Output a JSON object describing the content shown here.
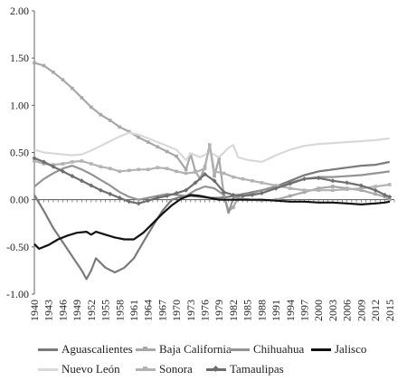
{
  "chart_data": {
    "type": "line",
    "title": "",
    "xlabel": "",
    "ylabel": "",
    "ylim": [
      -1.0,
      2.0
    ],
    "yticks": [
      "-1.00",
      "-0.50",
      "0.00",
      "0.50",
      "1.00",
      "1.50",
      "2.00"
    ],
    "x_start": 1940,
    "x_end": 2016,
    "xtick_labels": [
      "1940",
      "1943",
      "1946",
      "1949",
      "1952",
      "1955",
      "1958",
      "1961",
      "1964",
      "1967",
      "1970",
      "1973",
      "1976",
      "1979",
      "1982",
      "1985",
      "1988",
      "1991",
      "1994",
      "1997",
      "2000",
      "2003",
      "2006",
      "2009",
      "2012",
      "2015"
    ],
    "grid": false,
    "legend_position": "bottom",
    "series": [
      {
        "name": "Aguascalientes",
        "color": "#7a7a7a",
        "marker": "none",
        "points": [
          [
            1940,
            0.05
          ],
          [
            1942,
            -0.12
          ],
          [
            1944,
            -0.3
          ],
          [
            1946,
            -0.45
          ],
          [
            1948,
            -0.6
          ],
          [
            1950,
            -0.75
          ],
          [
            1951,
            -0.84
          ],
          [
            1952,
            -0.75
          ],
          [
            1953,
            -0.62
          ],
          [
            1955,
            -0.72
          ],
          [
            1957,
            -0.77
          ],
          [
            1959,
            -0.72
          ],
          [
            1961,
            -0.62
          ],
          [
            1963,
            -0.45
          ],
          [
            1965,
            -0.28
          ],
          [
            1967,
            -0.12
          ],
          [
            1969,
            0.0
          ],
          [
            1971,
            0.03
          ],
          [
            1973,
            0.04
          ],
          [
            1975,
            0.03
          ],
          [
            1977,
            0.02
          ],
          [
            1979,
            0.02
          ],
          [
            1981,
            0.03
          ],
          [
            1983,
            0.05
          ],
          [
            1985,
            0.07
          ],
          [
            1988,
            0.1
          ],
          [
            1991,
            0.14
          ],
          [
            1994,
            0.2
          ],
          [
            1997,
            0.26
          ],
          [
            2000,
            0.3
          ],
          [
            2003,
            0.32
          ],
          [
            2006,
            0.34
          ],
          [
            2009,
            0.36
          ],
          [
            2012,
            0.37
          ],
          [
            2014,
            0.39
          ],
          [
            2015,
            0.4
          ]
        ]
      },
      {
        "name": "Baja California",
        "color": "#a8a8a8",
        "marker": "square",
        "points": [
          [
            1940,
            1.45
          ],
          [
            1942,
            1.42
          ],
          [
            1944,
            1.35
          ],
          [
            1946,
            1.27
          ],
          [
            1948,
            1.18
          ],
          [
            1950,
            1.08
          ],
          [
            1952,
            0.98
          ],
          [
            1954,
            0.9
          ],
          [
            1956,
            0.84
          ],
          [
            1958,
            0.77
          ],
          [
            1960,
            0.72
          ],
          [
            1962,
            0.66
          ],
          [
            1964,
            0.61
          ],
          [
            1966,
            0.56
          ],
          [
            1968,
            0.51
          ],
          [
            1970,
            0.46
          ],
          [
            1972,
            0.32
          ],
          [
            1973,
            0.48
          ],
          [
            1974,
            0.3
          ],
          [
            1975,
            0.22
          ],
          [
            1976,
            0.35
          ],
          [
            1977,
            0.58
          ],
          [
            1978,
            0.25
          ],
          [
            1979,
            0.44
          ],
          [
            1980,
            0.05
          ],
          [
            1981,
            -0.12
          ],
          [
            1982,
            -0.08
          ],
          [
            1983,
            0.02
          ],
          [
            1985,
            0.0
          ],
          [
            1988,
            -0.01
          ],
          [
            1991,
            0.0
          ],
          [
            1994,
            0.04
          ],
          [
            1997,
            0.08
          ],
          [
            2000,
            0.12
          ],
          [
            2003,
            0.14
          ],
          [
            2006,
            0.12
          ],
          [
            2009,
            0.1
          ],
          [
            2012,
            0.06
          ],
          [
            2014,
            0.03
          ],
          [
            2015,
            0.0
          ]
        ]
      },
      {
        "name": "Chihuahua",
        "color": "#949494",
        "marker": "none",
        "points": [
          [
            1940,
            0.14
          ],
          [
            1942,
            0.22
          ],
          [
            1944,
            0.28
          ],
          [
            1946,
            0.33
          ],
          [
            1948,
            0.36
          ],
          [
            1950,
            0.32
          ],
          [
            1952,
            0.27
          ],
          [
            1954,
            0.21
          ],
          [
            1956,
            0.15
          ],
          [
            1958,
            0.08
          ],
          [
            1960,
            0.03
          ],
          [
            1962,
            0.0
          ],
          [
            1964,
            0.02
          ],
          [
            1966,
            0.04
          ],
          [
            1968,
            0.06
          ],
          [
            1970,
            0.05
          ],
          [
            1972,
            0.04
          ],
          [
            1974,
            0.1
          ],
          [
            1976,
            0.14
          ],
          [
            1978,
            0.12
          ],
          [
            1980,
            0.05
          ],
          [
            1981,
            -0.14
          ],
          [
            1982,
            0.02
          ],
          [
            1984,
            0.05
          ],
          [
            1986,
            0.07
          ],
          [
            1988,
            0.1
          ],
          [
            1991,
            0.13
          ],
          [
            1994,
            0.18
          ],
          [
            1997,
            0.22
          ],
          [
            2000,
            0.24
          ],
          [
            2003,
            0.24
          ],
          [
            2006,
            0.25
          ],
          [
            2009,
            0.26
          ],
          [
            2012,
            0.28
          ],
          [
            2015,
            0.3
          ]
        ]
      },
      {
        "name": "Jalisco",
        "color": "#111111",
        "marker": "none",
        "points": [
          [
            1940,
            -0.47
          ],
          [
            1941,
            -0.52
          ],
          [
            1943,
            -0.48
          ],
          [
            1945,
            -0.42
          ],
          [
            1947,
            -0.38
          ],
          [
            1949,
            -0.35
          ],
          [
            1951,
            -0.34
          ],
          [
            1952,
            -0.37
          ],
          [
            1953,
            -0.34
          ],
          [
            1955,
            -0.37
          ],
          [
            1957,
            -0.4
          ],
          [
            1959,
            -0.42
          ],
          [
            1961,
            -0.42
          ],
          [
            1963,
            -0.35
          ],
          [
            1965,
            -0.25
          ],
          [
            1967,
            -0.15
          ],
          [
            1969,
            -0.06
          ],
          [
            1971,
            0.01
          ],
          [
            1973,
            0.05
          ],
          [
            1975,
            0.04
          ],
          [
            1977,
            0.02
          ],
          [
            1979,
            0.0
          ],
          [
            1982,
            0.0
          ],
          [
            1985,
            0.0
          ],
          [
            1988,
            0.0
          ],
          [
            1991,
            -0.01
          ],
          [
            1994,
            -0.02
          ],
          [
            1997,
            -0.02
          ],
          [
            2000,
            -0.03
          ],
          [
            2003,
            -0.03
          ],
          [
            2006,
            -0.04
          ],
          [
            2009,
            -0.05
          ],
          [
            2012,
            -0.04
          ],
          [
            2014,
            -0.03
          ],
          [
            2015,
            -0.02
          ]
        ]
      },
      {
        "name": "Nuevo León",
        "color": "#d9d9d9",
        "marker": "none",
        "points": [
          [
            1940,
            0.53
          ],
          [
            1942,
            0.5
          ],
          [
            1944,
            0.49
          ],
          [
            1946,
            0.48
          ],
          [
            1948,
            0.47
          ],
          [
            1950,
            0.48
          ],
          [
            1952,
            0.52
          ],
          [
            1954,
            0.57
          ],
          [
            1956,
            0.62
          ],
          [
            1958,
            0.67
          ],
          [
            1960,
            0.71
          ],
          [
            1962,
            0.69
          ],
          [
            1964,
            0.65
          ],
          [
            1966,
            0.61
          ],
          [
            1968,
            0.57
          ],
          [
            1970,
            0.53
          ],
          [
            1972,
            0.42
          ],
          [
            1973,
            0.49
          ],
          [
            1975,
            0.45
          ],
          [
            1977,
            0.5
          ],
          [
            1979,
            0.45
          ],
          [
            1981,
            0.55
          ],
          [
            1982,
            0.58
          ],
          [
            1983,
            0.45
          ],
          [
            1985,
            0.42
          ],
          [
            1988,
            0.4
          ],
          [
            1991,
            0.47
          ],
          [
            1994,
            0.53
          ],
          [
            1997,
            0.57
          ],
          [
            2000,
            0.59
          ],
          [
            2003,
            0.6
          ],
          [
            2006,
            0.61
          ],
          [
            2009,
            0.62
          ],
          [
            2012,
            0.63
          ],
          [
            2015,
            0.65
          ]
        ]
      },
      {
        "name": "Sonora",
        "color": "#b3b3b3",
        "marker": "square",
        "points": [
          [
            1940,
            0.41
          ],
          [
            1942,
            0.38
          ],
          [
            1944,
            0.37
          ],
          [
            1946,
            0.38
          ],
          [
            1948,
            0.4
          ],
          [
            1950,
            0.41
          ],
          [
            1952,
            0.38
          ],
          [
            1954,
            0.35
          ],
          [
            1956,
            0.33
          ],
          [
            1958,
            0.3
          ],
          [
            1960,
            0.31
          ],
          [
            1962,
            0.32
          ],
          [
            1964,
            0.32
          ],
          [
            1966,
            0.34
          ],
          [
            1968,
            0.33
          ],
          [
            1970,
            0.3
          ],
          [
            1972,
            0.28
          ],
          [
            1974,
            0.29
          ],
          [
            1976,
            0.33
          ],
          [
            1977,
            0.58
          ],
          [
            1978,
            0.3
          ],
          [
            1980,
            0.28
          ],
          [
            1982,
            0.24
          ],
          [
            1984,
            0.22
          ],
          [
            1986,
            0.2
          ],
          [
            1988,
            0.18
          ],
          [
            1991,
            0.15
          ],
          [
            1994,
            0.12
          ],
          [
            1997,
            0.1
          ],
          [
            2000,
            0.1
          ],
          [
            2003,
            0.1
          ],
          [
            2006,
            0.11
          ],
          [
            2009,
            0.12
          ],
          [
            2012,
            0.14
          ],
          [
            2015,
            0.16
          ]
        ]
      },
      {
        "name": "Tamaulipas",
        "color": "#6e6e6e",
        "marker": "diamond",
        "points": [
          [
            1940,
            0.44
          ],
          [
            1942,
            0.4
          ],
          [
            1944,
            0.35
          ],
          [
            1946,
            0.3
          ],
          [
            1948,
            0.25
          ],
          [
            1950,
            0.2
          ],
          [
            1952,
            0.15
          ],
          [
            1954,
            0.1
          ],
          [
            1956,
            0.06
          ],
          [
            1958,
            0.02
          ],
          [
            1960,
            -0.02
          ],
          [
            1962,
            -0.04
          ],
          [
            1964,
            -0.01
          ],
          [
            1966,
            0.02
          ],
          [
            1968,
            0.04
          ],
          [
            1970,
            0.07
          ],
          [
            1972,
            0.1
          ],
          [
            1974,
            0.18
          ],
          [
            1976,
            0.27
          ],
          [
            1978,
            0.2
          ],
          [
            1980,
            0.08
          ],
          [
            1982,
            0.05
          ],
          [
            1984,
            0.04
          ],
          [
            1986,
            0.05
          ],
          [
            1988,
            0.07
          ],
          [
            1991,
            0.12
          ],
          [
            1994,
            0.17
          ],
          [
            1997,
            0.22
          ],
          [
            2000,
            0.23
          ],
          [
            2003,
            0.2
          ],
          [
            2006,
            0.18
          ],
          [
            2009,
            0.15
          ],
          [
            2012,
            0.1
          ],
          [
            2014,
            0.05
          ],
          [
            2015,
            0.03
          ]
        ]
      }
    ]
  }
}
